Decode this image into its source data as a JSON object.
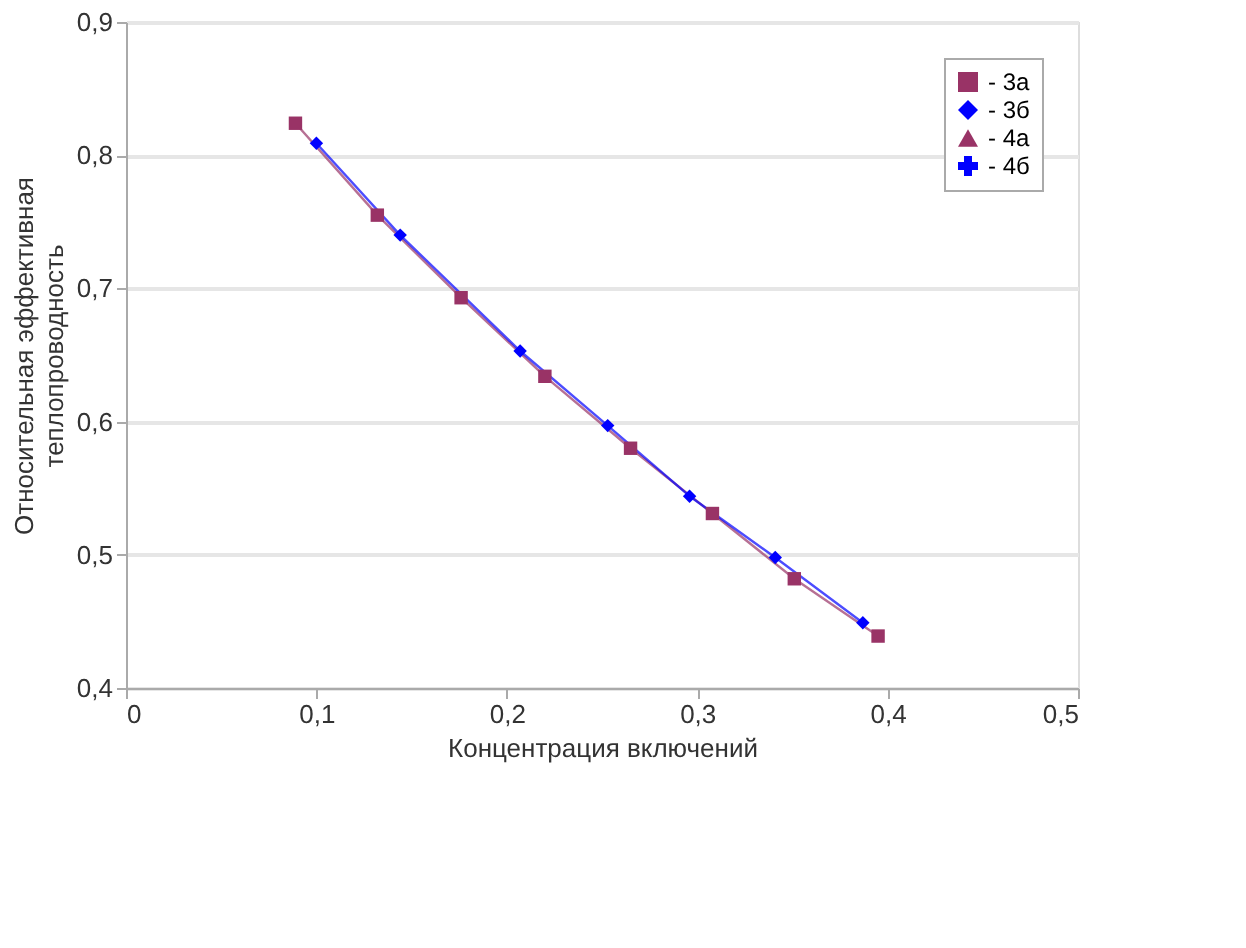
{
  "chart_data": {
    "type": "line",
    "xlabel": "Концентрация включений",
    "ylabel": "Относительная эффективная теплопроводность",
    "xlim": [
      0,
      0.5
    ],
    "ylim": [
      0.4,
      0.9
    ],
    "xticks": [
      0,
      {
        "value": 0.1,
        "label": "0,1"
      },
      {
        "value": 0.2,
        "label": "0,2"
      },
      {
        "value": 0.3,
        "label": "0,3"
      },
      {
        "value": 0.4,
        "label": "0,4"
      },
      {
        "value": 0.5,
        "label": "0,5"
      }
    ],
    "yticks": [
      {
        "value": 0.4,
        "label": "0,4"
      },
      {
        "value": 0.5,
        "label": "0,5"
      },
      {
        "value": 0.6,
        "label": "0,6"
      },
      {
        "value": 0.7,
        "label": "0,7"
      },
      {
        "value": 0.8,
        "label": "0,8"
      },
      {
        "value": 0.9,
        "label": "0,9"
      }
    ],
    "grid": "y",
    "legend": "top right",
    "line_style": "solid",
    "series": [
      {
        "name": "- 3а",
        "color": "#993366",
        "marker": "square",
        "x": [
          0.089,
          0.132,
          0.176,
          0.22,
          0.265,
          0.308,
          0.351,
          0.395
        ],
        "values": [
          0.824,
          0.755,
          0.693,
          0.634,
          0.58,
          0.531,
          0.482,
          0.439
        ]
      },
      {
        "name": "- 3б",
        "color": "#0000ff",
        "marker": "diamond",
        "x": [
          0.1,
          0.144,
          0.207,
          0.253,
          0.296,
          0.341,
          0.387
        ],
        "values": [
          0.809,
          0.74,
          0.653,
          0.597,
          0.544,
          0.498,
          0.449
        ]
      },
      {
        "name": "- 4а",
        "color": "#993366",
        "marker": "triangle"
      },
      {
        "name": "- 4б",
        "color": "#0000ff",
        "marker": "cross"
      }
    ]
  }
}
